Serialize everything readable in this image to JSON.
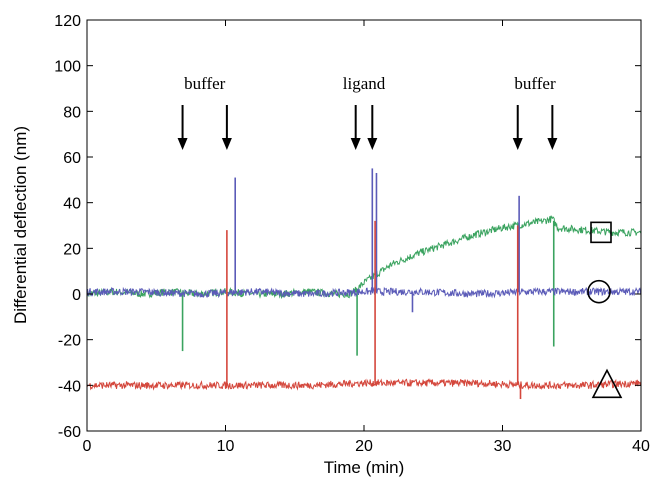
{
  "chart_data": {
    "type": "line",
    "title": "",
    "xlabel": "Time (min)",
    "ylabel": "Differential deflection (nm)",
    "xlim": [
      0,
      40
    ],
    "ylim": [
      -60,
      120
    ],
    "xticks": [
      0,
      10,
      20,
      30,
      40
    ],
    "yticks": [
      -60,
      -40,
      -20,
      0,
      20,
      40,
      60,
      80,
      100,
      120
    ],
    "grid": false,
    "legend": "none",
    "annotations": [
      {
        "text": "buffer",
        "arrows_x": [
          6.9,
          10.1
        ]
      },
      {
        "text": "ligand",
        "arrows_x": [
          19.4,
          20.6
        ]
      },
      {
        "text": "buffer",
        "arrows_x": [
          31.1,
          33.6
        ]
      }
    ],
    "markers": [
      {
        "shape": "square",
        "series_color": "#3aa35f",
        "y": 27
      },
      {
        "shape": "circle",
        "series_color": "#5b5bb8",
        "y": 1
      },
      {
        "shape": "triangle",
        "series_color": "#d4473c",
        "y": -40
      }
    ],
    "series": [
      {
        "color": "#3aa35f",
        "x": [
          0,
          2,
          4,
          6,
          8,
          10,
          12,
          14,
          16,
          18,
          19,
          19.5,
          20,
          21,
          22,
          24,
          26,
          28,
          30,
          31,
          32,
          33,
          33.6,
          34,
          36,
          38,
          40
        ],
        "y": [
          0,
          1,
          0,
          1,
          0,
          1,
          0,
          0,
          1,
          0,
          0,
          2,
          5,
          9,
          13,
          18,
          22,
          26,
          29,
          30,
          31,
          32,
          33,
          29,
          28,
          27,
          27
        ],
        "spikes": [
          [
            6.9,
            -25
          ],
          [
            19.5,
            -27
          ],
          [
            33.7,
            -23
          ]
        ]
      },
      {
        "color": "#5b5bb8",
        "x": [
          0,
          4,
          8,
          12,
          16,
          20,
          24,
          28,
          32,
          36,
          40
        ],
        "y": [
          1,
          1,
          0,
          1,
          0,
          1,
          1,
          0,
          1,
          1,
          1
        ],
        "spikes": [
          [
            10.7,
            51
          ],
          [
            20.6,
            55
          ],
          [
            20.9,
            53
          ],
          [
            31.2,
            43
          ],
          [
            23.5,
            -8
          ]
        ]
      },
      {
        "color": "#d4473c",
        "x": [
          0,
          4,
          8,
          12,
          16,
          20,
          24,
          28,
          32,
          36,
          40
        ],
        "y": [
          -40,
          -40,
          -40,
          -40,
          -40,
          -39,
          -39,
          -39,
          -40,
          -40,
          -39
        ],
        "spikes": [
          [
            10.1,
            28
          ],
          [
            20.8,
            32
          ],
          [
            31.1,
            30
          ],
          [
            31.3,
            -46
          ]
        ]
      }
    ]
  }
}
